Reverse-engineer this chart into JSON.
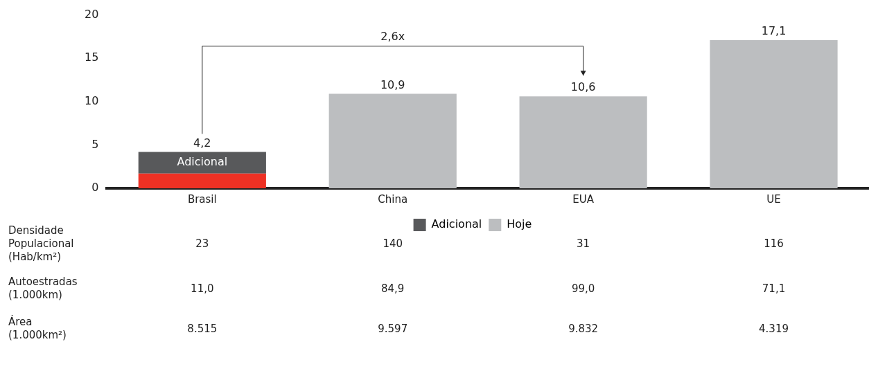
{
  "chart_data": {
    "type": "bar",
    "stacked": true,
    "categories": [
      "Brasil",
      "China",
      "EUA",
      "UE"
    ],
    "series": [
      {
        "name": "Hoje",
        "color": "#bcbec0",
        "colors": [
          "#ee3124",
          "#bcbec0",
          "#bcbec0",
          "#bcbec0"
        ],
        "values": [
          1.7,
          10.9,
          10.6,
          17.1
        ]
      },
      {
        "name": "Adicional",
        "color": "#58595b",
        "values": [
          2.5,
          null,
          null,
          null
        ]
      }
    ],
    "totals": [
      "4,2",
      "10,9",
      "10,6",
      "17,1"
    ],
    "ylim": [
      0,
      20
    ],
    "yticks": [
      0,
      5,
      10,
      15,
      20
    ],
    "grid": false,
    "legend": "bottom",
    "annotations": [
      "2,6x",
      "Densidade Populacional (Hab/km²)",
      "23",
      "140",
      "31",
      "116",
      "Autoestradas (1.000km)",
      "11,0",
      "84,9",
      "99,0",
      "71,1",
      "Área (1.000km²)",
      "8.515",
      "9.597",
      "9.832",
      "4.319"
    ]
  }
}
